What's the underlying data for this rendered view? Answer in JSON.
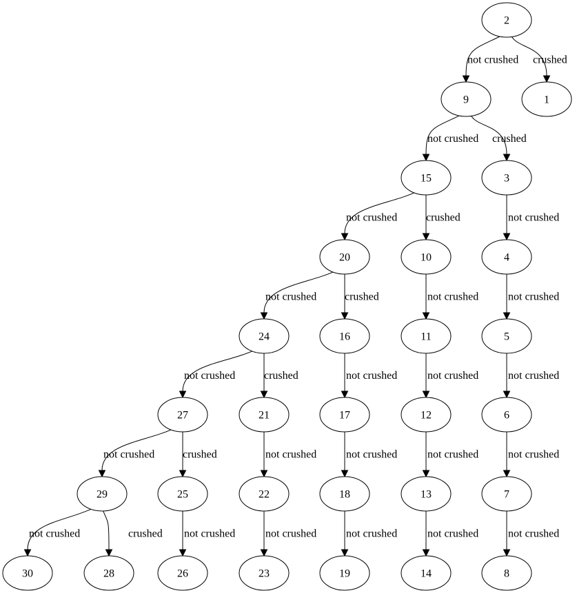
{
  "nodes": [
    {
      "id": "n2",
      "label": "2"
    },
    {
      "id": "n9",
      "label": "9"
    },
    {
      "id": "n1",
      "label": "1"
    },
    {
      "id": "n15",
      "label": "15"
    },
    {
      "id": "n3",
      "label": "3"
    },
    {
      "id": "n20",
      "label": "20"
    },
    {
      "id": "n10",
      "label": "10"
    },
    {
      "id": "n4",
      "label": "4"
    },
    {
      "id": "n24",
      "label": "24"
    },
    {
      "id": "n16",
      "label": "16"
    },
    {
      "id": "n11",
      "label": "11"
    },
    {
      "id": "n5",
      "label": "5"
    },
    {
      "id": "n27",
      "label": "27"
    },
    {
      "id": "n21",
      "label": "21"
    },
    {
      "id": "n17",
      "label": "17"
    },
    {
      "id": "n12",
      "label": "12"
    },
    {
      "id": "n6",
      "label": "6"
    },
    {
      "id": "n29",
      "label": "29"
    },
    {
      "id": "n25",
      "label": "25"
    },
    {
      "id": "n22",
      "label": "22"
    },
    {
      "id": "n18",
      "label": "18"
    },
    {
      "id": "n13",
      "label": "13"
    },
    {
      "id": "n7",
      "label": "7"
    },
    {
      "id": "n30",
      "label": "30"
    },
    {
      "id": "n28",
      "label": "28"
    },
    {
      "id": "n26",
      "label": "26"
    },
    {
      "id": "n23",
      "label": "23"
    },
    {
      "id": "n19",
      "label": "19"
    },
    {
      "id": "n14",
      "label": "14"
    },
    {
      "id": "n8",
      "label": "8"
    }
  ],
  "edges": [
    {
      "from": "n2",
      "to": "n9",
      "label": "not crushed"
    },
    {
      "from": "n2",
      "to": "n1",
      "label": "crushed"
    },
    {
      "from": "n9",
      "to": "n15",
      "label": "not crushed"
    },
    {
      "from": "n9",
      "to": "n3",
      "label": "crushed"
    },
    {
      "from": "n15",
      "to": "n20",
      "label": "not crushed"
    },
    {
      "from": "n15",
      "to": "n10",
      "label": "crushed"
    },
    {
      "from": "n3",
      "to": "n4",
      "label": "not crushed"
    },
    {
      "from": "n20",
      "to": "n24",
      "label": "not crushed"
    },
    {
      "from": "n20",
      "to": "n16",
      "label": "crushed"
    },
    {
      "from": "n10",
      "to": "n11",
      "label": "not crushed"
    },
    {
      "from": "n4",
      "to": "n5",
      "label": "not crushed"
    },
    {
      "from": "n24",
      "to": "n27",
      "label": "not crushed"
    },
    {
      "from": "n24",
      "to": "n21",
      "label": "crushed"
    },
    {
      "from": "n16",
      "to": "n17",
      "label": "not crushed"
    },
    {
      "from": "n11",
      "to": "n12",
      "label": "not crushed"
    },
    {
      "from": "n5",
      "to": "n6",
      "label": "not crushed"
    },
    {
      "from": "n27",
      "to": "n29",
      "label": "not crushed"
    },
    {
      "from": "n27",
      "to": "n25",
      "label": "crushed"
    },
    {
      "from": "n21",
      "to": "n22",
      "label": "not crushed"
    },
    {
      "from": "n17",
      "to": "n18",
      "label": "not crushed"
    },
    {
      "from": "n12",
      "to": "n13",
      "label": "not crushed"
    },
    {
      "from": "n6",
      "to": "n7",
      "label": "not crushed"
    },
    {
      "from": "n29",
      "to": "n30",
      "label": "not crushed"
    },
    {
      "from": "n29",
      "to": "n28",
      "label": "crushed"
    },
    {
      "from": "n25",
      "to": "n26",
      "label": "not crushed"
    },
    {
      "from": "n22",
      "to": "n23",
      "label": "not crushed"
    },
    {
      "from": "n18",
      "to": "n19",
      "label": "not crushed"
    },
    {
      "from": "n13",
      "to": "n14",
      "label": "not crushed"
    },
    {
      "from": "n7",
      "to": "n8",
      "label": "not crushed"
    }
  ]
}
